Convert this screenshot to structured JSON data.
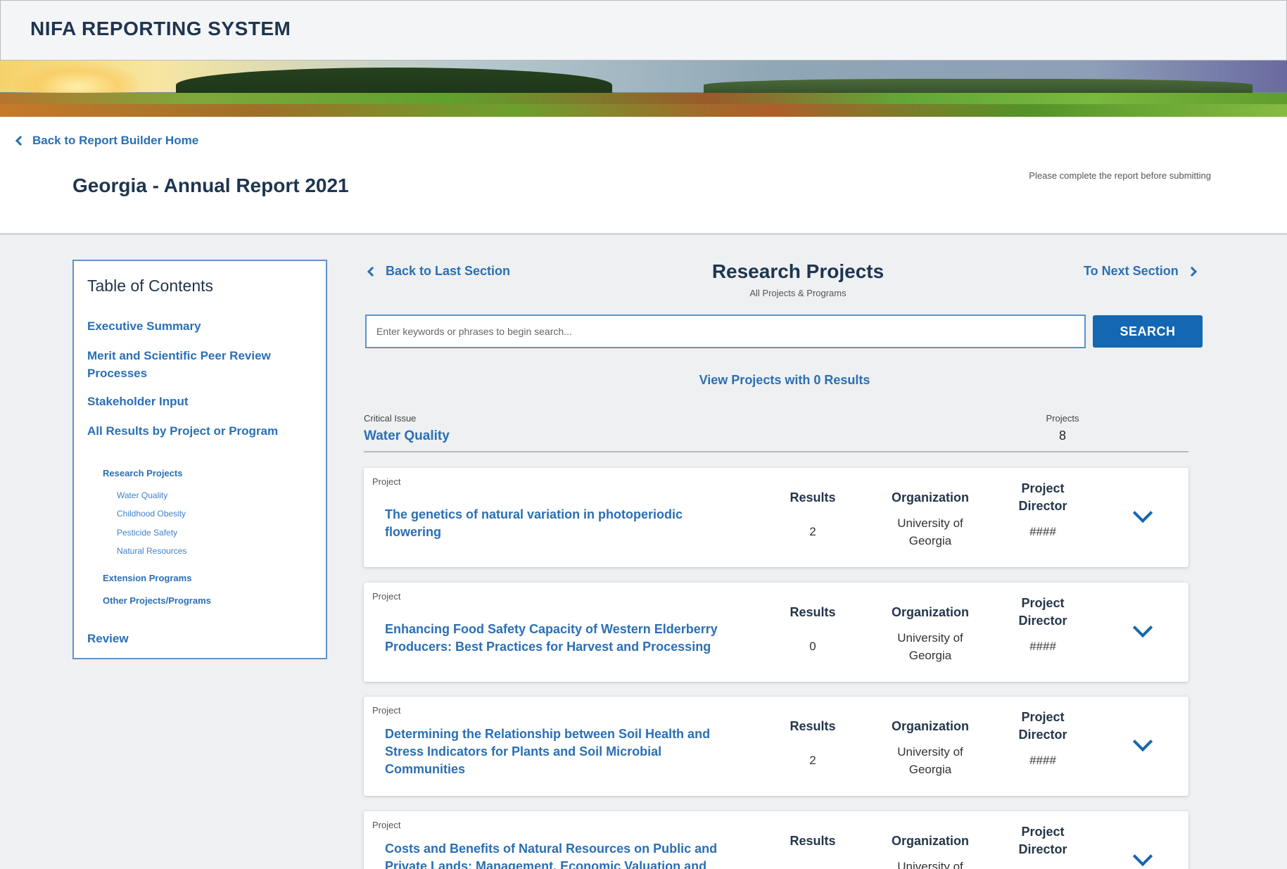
{
  "app": {
    "title": "NIFA REPORTING SYSTEM"
  },
  "header": {
    "back_link": "Back to Report Builder Home",
    "report_title": "Georgia - Annual Report 2021",
    "note": "Please complete the report before submitting"
  },
  "toc": {
    "title": "Table of Contents",
    "items": [
      {
        "label": "Executive Summary"
      },
      {
        "label": "Merit and Scientific Peer Review Processes"
      },
      {
        "label": "Stakeholder Input"
      },
      {
        "label": "All Results by Project or Program"
      },
      {
        "label": "Research Projects"
      },
      {
        "label": "Water Quality"
      },
      {
        "label": "Childhood Obesity"
      },
      {
        "label": "Pesticide Safety"
      },
      {
        "label": "Natural Resources"
      },
      {
        "label": "Extension Programs"
      },
      {
        "label": "Other Projects/Programs"
      },
      {
        "label": "Review"
      }
    ]
  },
  "section": {
    "back_label": "Back to Last Section",
    "next_label": "To Next Section",
    "title": "Research Projects",
    "subtitle": "All Projects & Programs"
  },
  "search": {
    "placeholder": "Enter keywords or phrases to begin search...",
    "button_label": "SEARCH"
  },
  "zero_results_link": "View Projects with 0 Results",
  "critical_issue": {
    "label": "Critical Issue",
    "value": "Water Quality",
    "projects_label": "Projects",
    "projects_count": "8"
  },
  "project_columns": {
    "kicker": "Project",
    "results": "Results",
    "organization": "Organization",
    "director": "Project Director"
  },
  "projects": [
    {
      "title": "The genetics of natural variation in photoperiodic flowering",
      "results": "2",
      "organization": "University of Georgia",
      "director": "####"
    },
    {
      "title": "Enhancing Food Safety Capacity of Western Elderberry Producers: Best Practices for Harvest and Processing",
      "results": "0",
      "organization": "University of Georgia",
      "director": "####"
    },
    {
      "title": "Determining the Relationship between Soil Health and Stress Indicators for Plants and Soil Microbial Communities",
      "results": "2",
      "organization": "University of Georgia",
      "director": "####"
    },
    {
      "title": "Costs and Benefits of Natural Resources on Public and Private Lands: Management, Economic Valuation and",
      "results": "",
      "organization": "University of",
      "director": ""
    }
  ]
}
